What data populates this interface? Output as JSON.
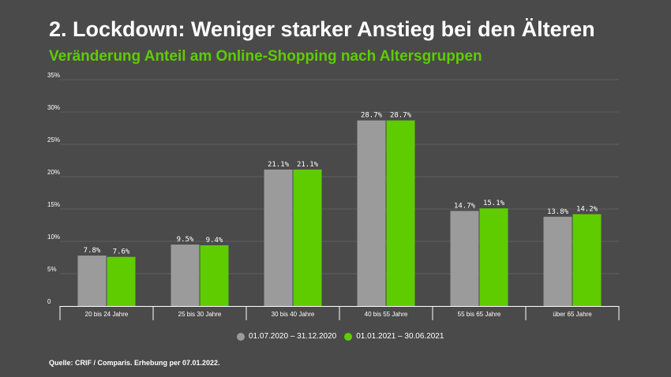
{
  "title": "2. Lockdown: Weniger starker Anstieg bei den Älteren",
  "subtitle": "Veränderung Anteil am Online-Shopping nach Altersgruppen",
  "source": "Quelle: CRIF / Comparis. Erhebung per 07.01.2022.",
  "colors": {
    "background": "#4a4a4a",
    "series1": "#9b9b9b",
    "series2": "#5fcc00",
    "gridline": "#5e5e5e"
  },
  "chart_data": {
    "type": "bar",
    "categories": [
      "20 bis 24 Jahre",
      "25 bis 30 Jahre",
      "30 bis 40 Jahre",
      "40 bis 55 Jahre",
      "55 bis 65 Jahre",
      "über 65 Jahre"
    ],
    "series": [
      {
        "name": "01.07.2020 – 31.12.2020",
        "values": [
          7.8,
          9.5,
          21.1,
          28.7,
          14.7,
          13.8
        ],
        "labels": [
          "7.8%",
          "9.5%",
          "21.1%",
          "28.7%",
          "14.7%",
          "13.8%"
        ]
      },
      {
        "name": "01.01.2021 – 30.06.2021",
        "values": [
          7.6,
          9.4,
          21.1,
          28.7,
          15.1,
          14.2
        ],
        "labels": [
          "7.6%",
          "9.4%",
          "21.1%",
          "28.7%",
          "15.1%",
          "14.2%"
        ]
      }
    ],
    "yticks": [
      0,
      5,
      10,
      15,
      20,
      25,
      30,
      35
    ],
    "ytick_labels": [
      "0",
      "5%",
      "10%",
      "15%",
      "20%",
      "25%",
      "30%",
      "35%"
    ],
    "ylim": [
      0,
      35
    ],
    "grid": true,
    "legend_position": "bottom-center"
  }
}
